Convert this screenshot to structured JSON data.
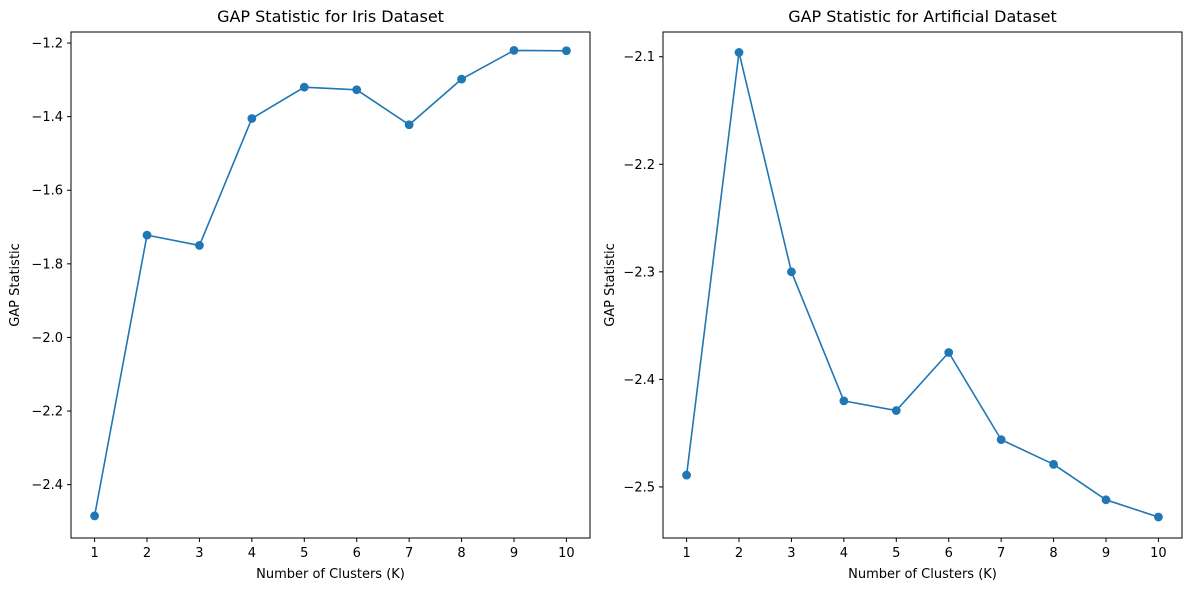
{
  "chart_data": [
    {
      "type": "line",
      "title": "GAP Statistic for Iris Dataset",
      "xlabel": "Number of Clusters (K)",
      "ylabel": "GAP Statistic",
      "x": [
        1,
        2,
        3,
        4,
        5,
        6,
        7,
        8,
        9,
        10
      ],
      "series": [
        {
          "values": [
            -2.485,
            -1.722,
            -1.75,
            -1.405,
            -1.32,
            -1.327,
            -1.422,
            -1.298,
            -1.22,
            -1.221
          ],
          "color": "#1f77b4",
          "marker": "circle"
        }
      ],
      "xlim": [
        0.55,
        10.45
      ],
      "ylim": [
        -2.545,
        -1.17
      ],
      "xticks": [
        1,
        2,
        3,
        4,
        5,
        6,
        7,
        8,
        9,
        10
      ],
      "yticks": [
        -2.4,
        -2.2,
        -2.0,
        -1.8,
        -1.6,
        -1.4,
        -1.2
      ],
      "ytick_labels": [
        "−2.4",
        "−2.2",
        "−2.0",
        "−1.8",
        "−1.6",
        "−1.4",
        "−1.2"
      ],
      "grid": false,
      "legend": "none"
    },
    {
      "type": "line",
      "title": "GAP Statistic for Artificial Dataset",
      "xlabel": "Number of Clusters (K)",
      "ylabel": "GAP Statistic",
      "x": [
        1,
        2,
        3,
        4,
        5,
        6,
        7,
        8,
        9,
        10
      ],
      "series": [
        {
          "values": [
            -2.489,
            -2.096,
            -2.3,
            -2.42,
            -2.429,
            -2.375,
            -2.456,
            -2.479,
            -2.512,
            -2.528
          ],
          "color": "#1f77b4",
          "marker": "circle"
        }
      ],
      "xlim": [
        0.55,
        10.45
      ],
      "ylim": [
        -2.5475,
        -2.077
      ],
      "xticks": [
        1,
        2,
        3,
        4,
        5,
        6,
        7,
        8,
        9,
        10
      ],
      "yticks": [
        -2.5,
        -2.4,
        -2.3,
        -2.2,
        -2.1
      ],
      "ytick_labels": [
        "−2.5",
        "−2.4",
        "−2.3",
        "−2.2",
        "−2.1"
      ],
      "grid": false,
      "legend": "none"
    }
  ]
}
